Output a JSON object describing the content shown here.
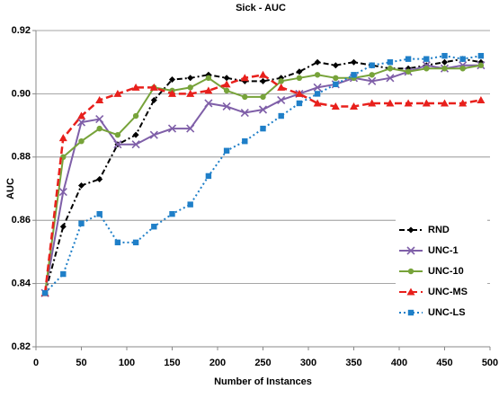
{
  "chart_data": {
    "type": "line",
    "title": "Sick - AUC",
    "xlabel": "Number of Instances",
    "ylabel": "AUC",
    "x": [
      10,
      30,
      50,
      70,
      90,
      110,
      130,
      150,
      170,
      190,
      210,
      230,
      250,
      270,
      290,
      310,
      330,
      350,
      370,
      390,
      410,
      430,
      450,
      470,
      490
    ],
    "series": [
      {
        "name": "RND",
        "color": "#000000",
        "marker": "diamond",
        "dash": "6 3 2 3",
        "values": [
          0.837,
          0.858,
          0.871,
          0.873,
          0.884,
          0.887,
          0.898,
          0.9045,
          0.905,
          0.906,
          0.905,
          0.904,
          0.904,
          0.905,
          0.907,
          0.91,
          0.909,
          0.91,
          0.909,
          0.908,
          0.908,
          0.909,
          0.91,
          0.911,
          0.91
        ]
      },
      {
        "name": "UNC-1",
        "color": "#7f5fa8",
        "marker": "x",
        "dash": "none",
        "values": [
          0.837,
          0.869,
          0.891,
          0.892,
          0.884,
          0.884,
          0.887,
          0.889,
          0.889,
          0.897,
          0.896,
          0.894,
          0.895,
          0.898,
          0.9,
          0.902,
          0.903,
          0.905,
          0.904,
          0.905,
          0.907,
          0.909,
          0.908,
          0.909,
          0.909
        ]
      },
      {
        "name": "UNC-10",
        "color": "#77a33a",
        "marker": "circle",
        "dash": "none",
        "values": [
          0.837,
          0.88,
          0.885,
          0.889,
          0.887,
          0.893,
          0.902,
          0.901,
          0.902,
          0.905,
          0.901,
          0.899,
          0.899,
          0.904,
          0.905,
          0.906,
          0.905,
          0.905,
          0.906,
          0.908,
          0.907,
          0.908,
          0.908,
          0.908,
          0.909
        ]
      },
      {
        "name": "UNC-MS",
        "color": "#e8201c",
        "marker": "triangle",
        "dash": "8 4",
        "values": [
          0.837,
          0.886,
          0.893,
          0.898,
          0.9,
          0.902,
          0.902,
          0.9,
          0.9,
          0.901,
          0.903,
          0.905,
          0.906,
          0.902,
          0.9,
          0.897,
          0.896,
          0.896,
          0.897,
          0.897,
          0.897,
          0.897,
          0.897,
          0.897,
          0.898
        ]
      },
      {
        "name": "UNC-LS",
        "color": "#1f7fc8",
        "marker": "square",
        "dash": "2 3",
        "values": [
          0.837,
          0.843,
          0.859,
          0.862,
          0.853,
          0.853,
          0.858,
          0.862,
          0.865,
          0.874,
          0.882,
          0.885,
          0.889,
          0.893,
          0.897,
          0.9,
          0.903,
          0.906,
          0.909,
          0.91,
          0.911,
          0.911,
          0.912,
          0.911,
          0.912
        ]
      }
    ],
    "xlim": [
      0,
      500
    ],
    "xticks": [
      0,
      50,
      100,
      150,
      200,
      250,
      300,
      350,
      400,
      450,
      500
    ],
    "ylim": [
      0.82,
      0.92
    ],
    "yticks": [
      0.82,
      0.84,
      0.86,
      0.88,
      {
        "value": 0.9,
        "label": "0.90"
      },
      0.92
    ],
    "grid": true,
    "legend": "lower right"
  }
}
